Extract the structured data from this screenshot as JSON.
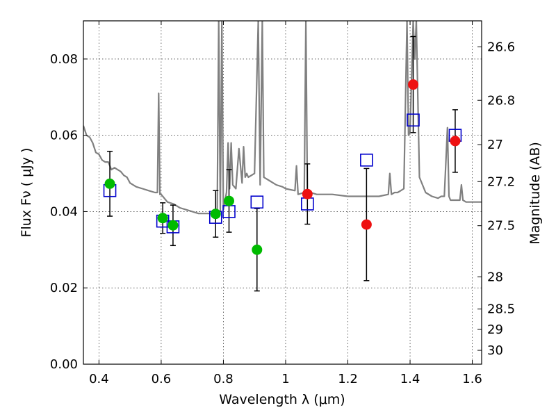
{
  "chart_data": {
    "type": "scatter",
    "xlabel": "Wavelength  λ (μm)",
    "ylabel": "Flux  Fν  ( μJy )",
    "ylabel_right": "Magnitude (AB)",
    "xlim": [
      0.35,
      1.63
    ],
    "ylim": [
      0,
      0.09
    ],
    "grid": true,
    "x_ticks": [
      "0.4",
      "0.6",
      "0.8",
      "1",
      "1.2",
      "1.4",
      "1.6"
    ],
    "x_tick_values": [
      0.4,
      0.6,
      0.8,
      1.0,
      1.2,
      1.4,
      1.6
    ],
    "y_ticks": [
      "0.00",
      "0.02",
      "0.04",
      "0.06",
      "0.08"
    ],
    "y_tick_values": [
      0.0,
      0.02,
      0.04,
      0.06,
      0.08
    ],
    "right_ticks": [
      "26.6",
      "26.8",
      "27",
      "27.2",
      "27.5",
      "28",
      "28.5",
      "29",
      "30"
    ],
    "right_tick_values": [
      26.6,
      26.8,
      27.0,
      27.2,
      27.5,
      28.0,
      28.5,
      29.0,
      30.0
    ],
    "sed_model": {
      "color": "#808080",
      "x": [
        0.35,
        0.36,
        0.37,
        0.38,
        0.39,
        0.4,
        0.41,
        0.42,
        0.43,
        0.44,
        0.45,
        0.46,
        0.47,
        0.48,
        0.49,
        0.5,
        0.52,
        0.54,
        0.56,
        0.58,
        0.588,
        0.592,
        0.596,
        0.6,
        0.62,
        0.64,
        0.66,
        0.68,
        0.7,
        0.72,
        0.74,
        0.76,
        0.78,
        0.785,
        0.79,
        0.795,
        0.8,
        0.81,
        0.815,
        0.82,
        0.825,
        0.83,
        0.84,
        0.85,
        0.86,
        0.865,
        0.87,
        0.875,
        0.88,
        0.9,
        0.912,
        0.918,
        0.925,
        0.93,
        0.95,
        0.97,
        0.99,
        1.0,
        1.03,
        1.035,
        1.04,
        1.06,
        1.065,
        1.07,
        1.08,
        1.1,
        1.15,
        1.2,
        1.25,
        1.3,
        1.33,
        1.335,
        1.34,
        1.35,
        1.36,
        1.37,
        1.38,
        1.39,
        1.395,
        1.4,
        1.41,
        1.415,
        1.42,
        1.43,
        1.45,
        1.47,
        1.49,
        1.5,
        1.51,
        1.52,
        1.525,
        1.53,
        1.54,
        1.55,
        1.56,
        1.565,
        1.57,
        1.58,
        1.6,
        1.63
      ],
      "y": [
        0.0625,
        0.06,
        0.0595,
        0.058,
        0.0555,
        0.055,
        0.0535,
        0.053,
        0.053,
        0.051,
        0.0515,
        0.051,
        0.0505,
        0.0495,
        0.049,
        0.0475,
        0.0465,
        0.046,
        0.0455,
        0.045,
        0.045,
        0.071,
        0.0445,
        0.0445,
        0.0425,
        0.042,
        0.041,
        0.0405,
        0.04,
        0.0395,
        0.0395,
        0.0395,
        0.0395,
        0.09,
        0.04,
        0.09,
        0.0405,
        0.045,
        0.058,
        0.046,
        0.058,
        0.047,
        0.046,
        0.0565,
        0.0475,
        0.057,
        0.049,
        0.05,
        0.049,
        0.05,
        0.09,
        0.047,
        0.09,
        0.049,
        0.048,
        0.047,
        0.0465,
        0.046,
        0.0455,
        0.052,
        0.0445,
        0.045,
        0.09,
        0.045,
        0.045,
        0.0445,
        0.0445,
        0.044,
        0.044,
        0.044,
        0.0445,
        0.05,
        0.0445,
        0.045,
        0.045,
        0.0455,
        0.046,
        0.09,
        0.06,
        0.061,
        0.09,
        0.08,
        0.09,
        0.049,
        0.045,
        0.044,
        0.0435,
        0.044,
        0.044,
        0.062,
        0.044,
        0.043,
        0.043,
        0.043,
        0.043,
        0.047,
        0.043,
        0.0425,
        0.0425,
        0.0425
      ]
    },
    "model_points": {
      "marker": "open-square",
      "color": "#0000cc",
      "x": [
        0.435,
        0.605,
        0.638,
        0.775,
        0.818,
        0.908,
        1.07,
        1.26,
        1.41,
        1.545
      ],
      "y": [
        0.0455,
        0.0375,
        0.036,
        0.0385,
        0.04,
        0.0425,
        0.042,
        0.0535,
        0.064,
        0.06
      ]
    },
    "obs_green": {
      "marker": "filled-circle",
      "color": "#00bb00",
      "x": [
        0.435,
        0.605,
        0.638,
        0.775,
        0.818,
        0.908
      ],
      "y": [
        0.0473,
        0.0383,
        0.0364,
        0.0394,
        0.0428,
        0.03
      ],
      "err": [
        0.0085,
        0.004,
        0.0053,
        0.0061,
        0.0082,
        0.0108
      ]
    },
    "obs_red": {
      "marker": "filled-circle",
      "color": "#ee1111",
      "x": [
        1.07,
        1.26,
        1.41,
        1.545
      ],
      "y": [
        0.0446,
        0.0366,
        0.0733,
        0.0585
      ],
      "err": [
        0.0079,
        0.0147,
        0.0126,
        0.0082
      ]
    }
  }
}
